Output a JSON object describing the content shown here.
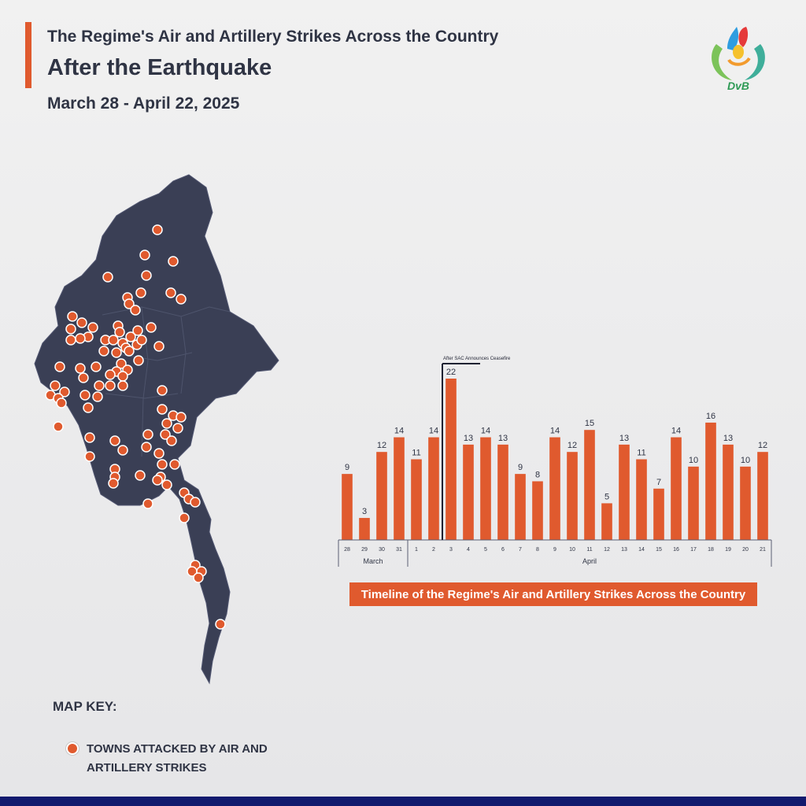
{
  "header": {
    "title_line1": "The Regime's Air and Artillery Strikes Across the Country",
    "title_line2": "After the Earthquake",
    "date_range": "March 28 - April 22, 2025"
  },
  "logo": {
    "text": "DVB"
  },
  "map": {
    "region_color": "#3a3f55",
    "marker_color": "#e05a2e",
    "marker_count": 104
  },
  "map_key": {
    "title": "MAP KEY:",
    "label": "TOWNS ATTACKED BY AIR AND ARTILLERY STRIKES"
  },
  "chart_data": {
    "type": "bar",
    "title": "Timeline of the Regime's Air and Artillery Strikes Across the Country",
    "categories": [
      "28",
      "29",
      "30",
      "31",
      "1",
      "2",
      "3",
      "4",
      "5",
      "6",
      "7",
      "8",
      "9",
      "10",
      "11",
      "12",
      "13",
      "14",
      "15",
      "16",
      "17",
      "18",
      "19",
      "20",
      "21"
    ],
    "values": [
      9,
      3,
      12,
      14,
      11,
      14,
      22,
      13,
      14,
      13,
      9,
      8,
      14,
      12,
      15,
      5,
      13,
      11,
      7,
      14,
      10,
      16,
      13,
      10,
      12
    ],
    "groups": [
      {
        "label": "March",
        "start": 0,
        "end": 3
      },
      {
        "label": "April",
        "start": 4,
        "end": 24
      }
    ],
    "annotation": {
      "text": "After SAC Announces Ceasefire",
      "after_category": "2"
    },
    "ylim": [
      0,
      22
    ],
    "bar_color": "#e05a2e",
    "xlabel": "",
    "ylabel": ""
  }
}
